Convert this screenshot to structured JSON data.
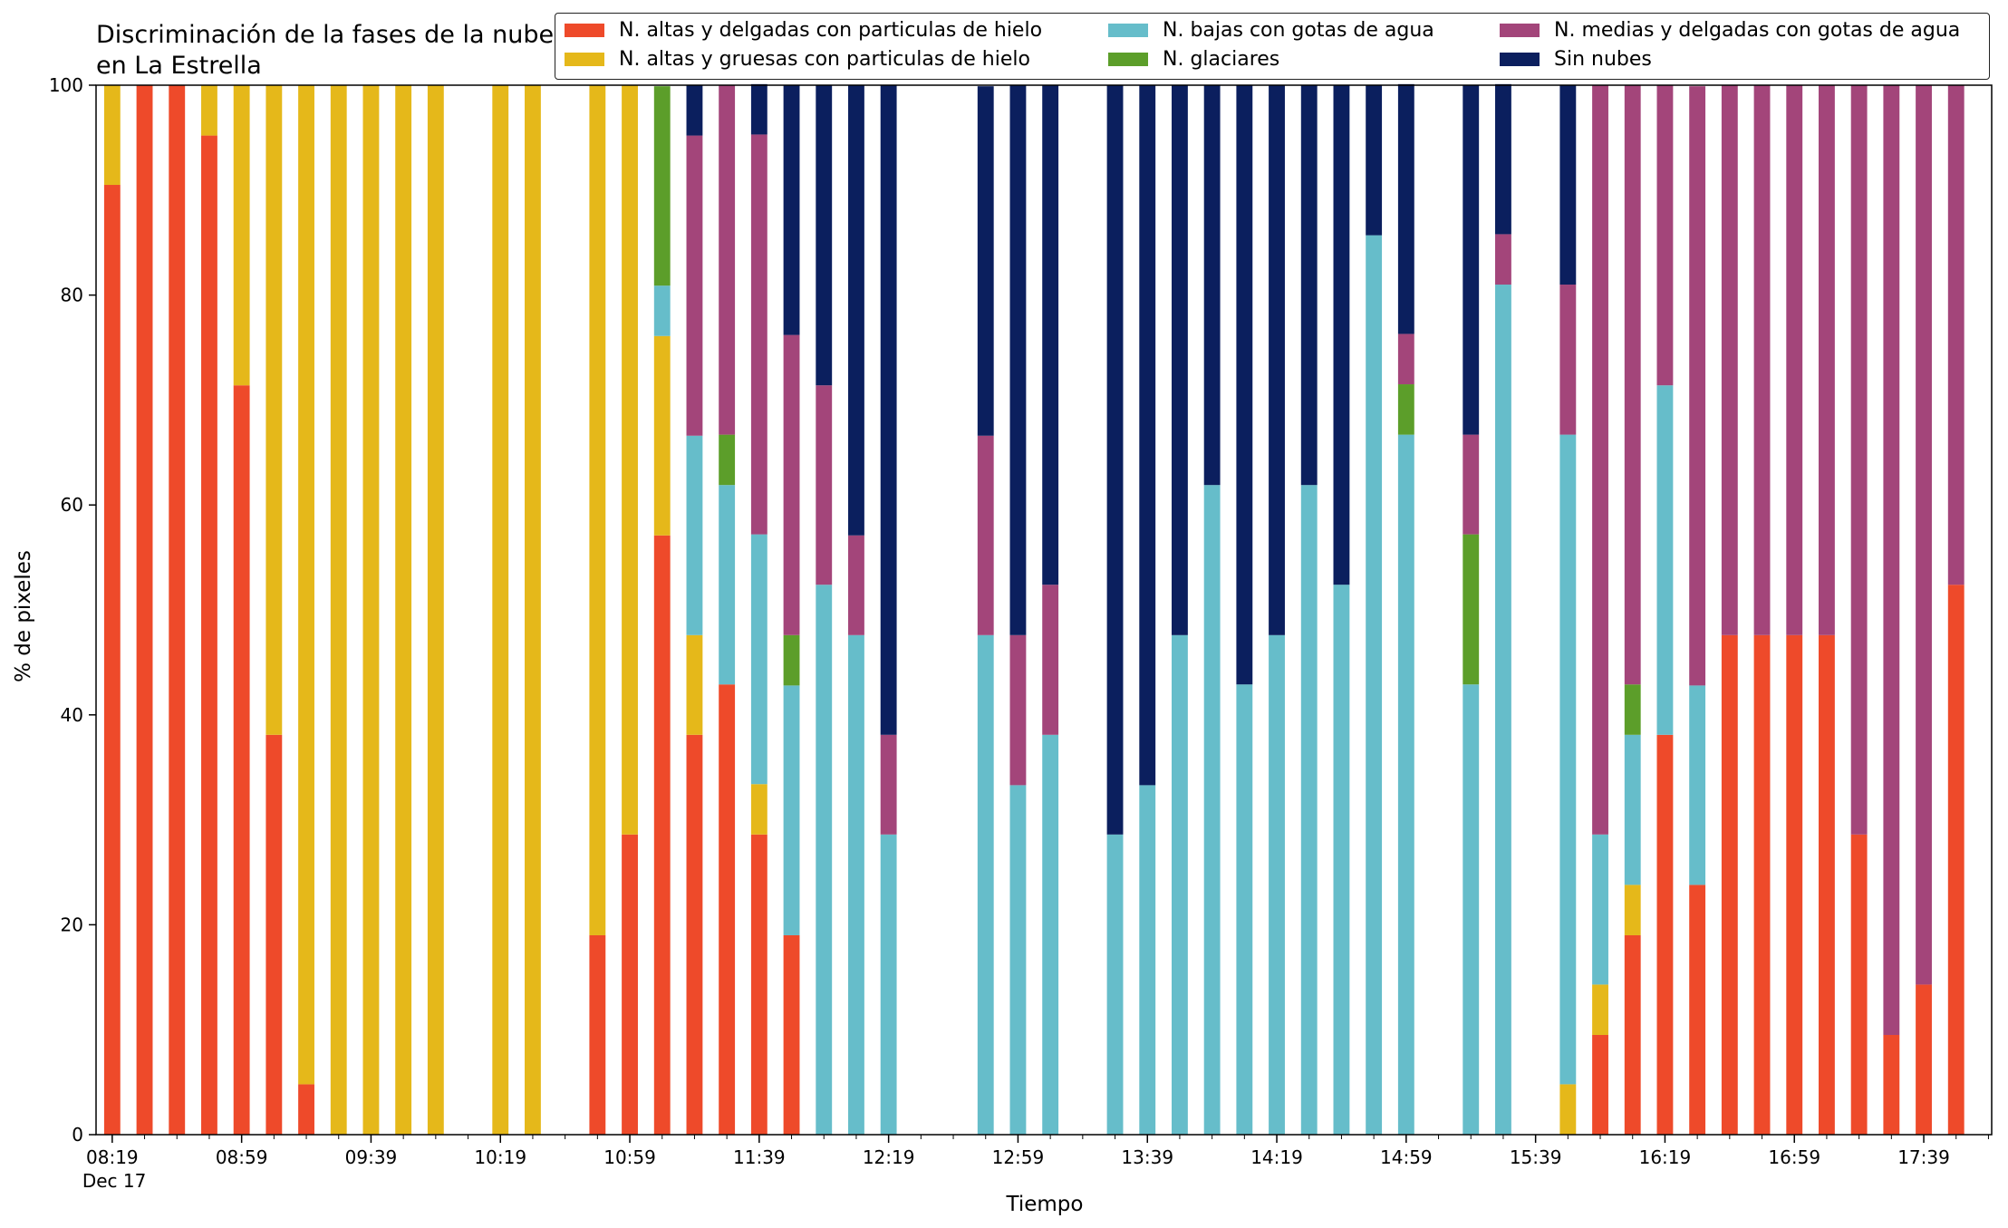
{
  "title": "Discriminación de la fases de la nube en La Estrella",
  "chart_data": {
    "type": "bar",
    "stacked": true,
    "title": "Discriminación de la fases de la nube en La Estrella",
    "xlabel": "Tiempo",
    "ylabel": "% de pixeles",
    "ylim": [
      0,
      100
    ],
    "yticks": [
      0,
      20,
      40,
      60,
      80,
      100
    ],
    "x_tick_labels": [
      "08:19",
      "08:59",
      "09:39",
      "10:19",
      "10:59",
      "11:39",
      "12:19",
      "12:59",
      "13:39",
      "14:19",
      "14:59",
      "15:39",
      "16:19",
      "16:59",
      "17:39"
    ],
    "x_date_label": "Dec 17",
    "x_start": "08:19",
    "x_end": "18:00",
    "x_interval_minutes": 10,
    "legend_position": "top",
    "legend": [
      {
        "key": "altas_delgadas",
        "label": "N. altas y delgadas con particulas de hielo",
        "color": "#ee4a2a"
      },
      {
        "key": "altas_gruesas",
        "label": "N. altas y gruesas con particulas de hielo",
        "color": "#e5b81a"
      },
      {
        "key": "bajas_agua",
        "label": "N. bajas con gotas de agua",
        "color": "#66bdca"
      },
      {
        "key": "glaciares",
        "label": "N. glaciares",
        "color": "#5c9e2a"
      },
      {
        "key": "medias_agua",
        "label": "N. medias y delgadas con gotas de agua",
        "color": "#a3457a"
      },
      {
        "key": "sin_nubes",
        "label": "Sin nubes",
        "color": "#0b1f5e"
      }
    ],
    "series_order": [
      "altas_delgadas",
      "altas_gruesas",
      "bajas_agua",
      "glaciares",
      "medias_agua",
      "sin_nubes"
    ],
    "bars": [
      {
        "time": "08:19",
        "altas_delgadas": 90.5,
        "altas_gruesas": 9.5,
        "bajas_agua": 0,
        "glaciares": 0,
        "medias_agua": 0,
        "sin_nubes": 0
      },
      {
        "time": "08:29",
        "altas_delgadas": 100,
        "altas_gruesas": 0,
        "bajas_agua": 0,
        "glaciares": 0,
        "medias_agua": 0,
        "sin_nubes": 0
      },
      {
        "time": "08:39",
        "altas_delgadas": 100,
        "altas_gruesas": 0,
        "bajas_agua": 0,
        "glaciares": 0,
        "medias_agua": 0,
        "sin_nubes": 0
      },
      {
        "time": "08:49",
        "altas_delgadas": 95.2,
        "altas_gruesas": 4.8,
        "bajas_agua": 0,
        "glaciares": 0,
        "medias_agua": 0,
        "sin_nubes": 0
      },
      {
        "time": "08:59",
        "altas_delgadas": 71.4,
        "altas_gruesas": 28.6,
        "bajas_agua": 0,
        "glaciares": 0,
        "medias_agua": 0,
        "sin_nubes": 0
      },
      {
        "time": "09:09",
        "altas_delgadas": 38.1,
        "altas_gruesas": 61.9,
        "bajas_agua": 0,
        "glaciares": 0,
        "medias_agua": 0,
        "sin_nubes": 0
      },
      {
        "time": "09:19",
        "altas_delgadas": 4.8,
        "altas_gruesas": 95.2,
        "bajas_agua": 0,
        "glaciares": 0,
        "medias_agua": 0,
        "sin_nubes": 0
      },
      {
        "time": "09:29",
        "altas_delgadas": 0,
        "altas_gruesas": 100,
        "bajas_agua": 0,
        "glaciares": 0,
        "medias_agua": 0,
        "sin_nubes": 0
      },
      {
        "time": "09:39",
        "altas_delgadas": 0,
        "altas_gruesas": 100,
        "bajas_agua": 0,
        "glaciares": 0,
        "medias_agua": 0,
        "sin_nubes": 0
      },
      {
        "time": "09:49",
        "altas_delgadas": 0,
        "altas_gruesas": 100,
        "bajas_agua": 0,
        "glaciares": 0,
        "medias_agua": 0,
        "sin_nubes": 0
      },
      {
        "time": "09:59",
        "altas_delgadas": 0,
        "altas_gruesas": 100,
        "bajas_agua": 0,
        "glaciares": 0,
        "medias_agua": 0,
        "sin_nubes": 0
      },
      {
        "time": "10:19",
        "altas_delgadas": 0,
        "altas_gruesas": 100,
        "bajas_agua": 0,
        "glaciares": 0,
        "medias_agua": 0,
        "sin_nubes": 0
      },
      {
        "time": "10:29",
        "altas_delgadas": 0,
        "altas_gruesas": 100,
        "bajas_agua": 0,
        "glaciares": 0,
        "medias_agua": 0,
        "sin_nubes": 0
      },
      {
        "time": "10:49",
        "altas_delgadas": 19.0,
        "altas_gruesas": 81.0,
        "bajas_agua": 0,
        "glaciares": 0,
        "medias_agua": 0,
        "sin_nubes": 0
      },
      {
        "time": "10:59",
        "altas_delgadas": 28.6,
        "altas_gruesas": 71.4,
        "bajas_agua": 0,
        "glaciares": 0,
        "medias_agua": 0,
        "sin_nubes": 0
      },
      {
        "time": "11:09",
        "altas_delgadas": 57.1,
        "altas_gruesas": 19.0,
        "bajas_agua": 4.8,
        "glaciares": 19.0,
        "medias_agua": 0,
        "sin_nubes": 0
      },
      {
        "time": "11:19",
        "altas_delgadas": 38.1,
        "altas_gruesas": 9.5,
        "bajas_agua": 19.0,
        "glaciares": 0,
        "medias_agua": 28.6,
        "sin_nubes": 4.8
      },
      {
        "time": "11:29",
        "altas_delgadas": 42.9,
        "altas_gruesas": 0,
        "bajas_agua": 19.0,
        "glaciares": 4.8,
        "medias_agua": 33.3,
        "sin_nubes": 0
      },
      {
        "time": "11:39",
        "altas_delgadas": 28.6,
        "altas_gruesas": 4.8,
        "bajas_agua": 23.8,
        "glaciares": 0,
        "medias_agua": 38.1,
        "sin_nubes": 4.8
      },
      {
        "time": "11:49",
        "altas_delgadas": 19.0,
        "altas_gruesas": 0,
        "bajas_agua": 23.8,
        "glaciares": 4.8,
        "medias_agua": 28.6,
        "sin_nubes": 23.8
      },
      {
        "time": "11:59",
        "altas_delgadas": 0,
        "altas_gruesas": 0,
        "bajas_agua": 52.4,
        "glaciares": 0,
        "medias_agua": 19.0,
        "sin_nubes": 28.6
      },
      {
        "time": "12:09",
        "altas_delgadas": 0,
        "altas_gruesas": 0,
        "bajas_agua": 47.6,
        "glaciares": 0,
        "medias_agua": 9.5,
        "sin_nubes": 42.9
      },
      {
        "time": "12:19",
        "altas_delgadas": 0,
        "altas_gruesas": 0,
        "bajas_agua": 28.6,
        "glaciares": 0,
        "medias_agua": 9.5,
        "sin_nubes": 61.9
      },
      {
        "time": "12:49",
        "altas_delgadas": 0,
        "altas_gruesas": 0,
        "bajas_agua": 47.6,
        "glaciares": 0,
        "medias_agua": 19.0,
        "sin_nubes": 33.3
      },
      {
        "time": "12:59",
        "altas_delgadas": 0,
        "altas_gruesas": 0,
        "bajas_agua": 33.3,
        "glaciares": 0,
        "medias_agua": 14.3,
        "sin_nubes": 52.4
      },
      {
        "time": "13:09",
        "altas_delgadas": 0,
        "altas_gruesas": 0,
        "bajas_agua": 38.1,
        "glaciares": 0,
        "medias_agua": 14.3,
        "sin_nubes": 47.6
      },
      {
        "time": "13:29",
        "altas_delgadas": 0,
        "altas_gruesas": 0,
        "bajas_agua": 28.6,
        "glaciares": 0,
        "medias_agua": 0,
        "sin_nubes": 71.4
      },
      {
        "time": "13:39",
        "altas_delgadas": 0,
        "altas_gruesas": 0,
        "bajas_agua": 33.3,
        "glaciares": 0,
        "medias_agua": 0,
        "sin_nubes": 66.7
      },
      {
        "time": "13:49",
        "altas_delgadas": 0,
        "altas_gruesas": 0,
        "bajas_agua": 47.6,
        "glaciares": 0,
        "medias_agua": 0,
        "sin_nubes": 52.4
      },
      {
        "time": "13:59",
        "altas_delgadas": 0,
        "altas_gruesas": 0,
        "bajas_agua": 61.9,
        "glaciares": 0,
        "medias_agua": 0,
        "sin_nubes": 38.1
      },
      {
        "time": "14:09",
        "altas_delgadas": 0,
        "altas_gruesas": 0,
        "bajas_agua": 42.9,
        "glaciares": 0,
        "medias_agua": 0,
        "sin_nubes": 57.1
      },
      {
        "time": "14:19",
        "altas_delgadas": 0,
        "altas_gruesas": 0,
        "bajas_agua": 47.6,
        "glaciares": 0,
        "medias_agua": 0,
        "sin_nubes": 52.4
      },
      {
        "time": "14:29",
        "altas_delgadas": 0,
        "altas_gruesas": 0,
        "bajas_agua": 61.9,
        "glaciares": 0,
        "medias_agua": 0,
        "sin_nubes": 38.1
      },
      {
        "time": "14:39",
        "altas_delgadas": 0,
        "altas_gruesas": 0,
        "bajas_agua": 52.4,
        "glaciares": 0,
        "medias_agua": 0,
        "sin_nubes": 47.6
      },
      {
        "time": "14:49",
        "altas_delgadas": 0,
        "altas_gruesas": 0,
        "bajas_agua": 85.7,
        "glaciares": 0,
        "medias_agua": 0,
        "sin_nubes": 14.3
      },
      {
        "time": "14:59",
        "altas_delgadas": 0,
        "altas_gruesas": 0,
        "bajas_agua": 66.7,
        "glaciares": 4.8,
        "medias_agua": 4.8,
        "sin_nubes": 23.8
      },
      {
        "time": "15:19",
        "altas_delgadas": 0,
        "altas_gruesas": 0,
        "bajas_agua": 42.9,
        "glaciares": 14.3,
        "medias_agua": 9.5,
        "sin_nubes": 33.3
      },
      {
        "time": "15:29",
        "altas_delgadas": 0,
        "altas_gruesas": 0,
        "bajas_agua": 81.0,
        "glaciares": 0,
        "medias_agua": 4.8,
        "sin_nubes": 14.3
      },
      {
        "time": "15:49",
        "altas_delgadas": 0,
        "altas_gruesas": 4.8,
        "bajas_agua": 61.9,
        "glaciares": 0,
        "medias_agua": 14.3,
        "sin_nubes": 19.0
      },
      {
        "time": "15:59",
        "altas_delgadas": 9.5,
        "altas_gruesas": 4.8,
        "bajas_agua": 14.3,
        "glaciares": 0,
        "medias_agua": 71.4,
        "sin_nubes": 0
      },
      {
        "time": "16:09",
        "altas_delgadas": 19.0,
        "altas_gruesas": 4.8,
        "bajas_agua": 14.3,
        "glaciares": 4.8,
        "medias_agua": 57.1,
        "sin_nubes": 0
      },
      {
        "time": "16:19",
        "altas_delgadas": 38.1,
        "altas_gruesas": 0,
        "bajas_agua": 33.3,
        "glaciares": 0,
        "medias_agua": 28.6,
        "sin_nubes": 0
      },
      {
        "time": "16:29",
        "altas_delgadas": 23.8,
        "altas_gruesas": 0,
        "bajas_agua": 19.0,
        "glaciares": 0,
        "medias_agua": 57.1,
        "sin_nubes": 0
      },
      {
        "time": "16:39",
        "altas_delgadas": 47.6,
        "altas_gruesas": 0,
        "bajas_agua": 0,
        "glaciares": 0,
        "medias_agua": 52.4,
        "sin_nubes": 0
      },
      {
        "time": "16:49",
        "altas_delgadas": 47.6,
        "altas_gruesas": 0,
        "bajas_agua": 0,
        "glaciares": 0,
        "medias_agua": 52.4,
        "sin_nubes": 0
      },
      {
        "time": "16:59",
        "altas_delgadas": 47.6,
        "altas_gruesas": 0,
        "bajas_agua": 0,
        "glaciares": 0,
        "medias_agua": 52.4,
        "sin_nubes": 0
      },
      {
        "time": "17:09",
        "altas_delgadas": 47.6,
        "altas_gruesas": 0,
        "bajas_agua": 0,
        "glaciares": 0,
        "medias_agua": 52.4,
        "sin_nubes": 0
      },
      {
        "time": "17:19",
        "altas_delgadas": 28.6,
        "altas_gruesas": 0,
        "bajas_agua": 0,
        "glaciares": 0,
        "medias_agua": 71.4,
        "sin_nubes": 0
      },
      {
        "time": "17:29",
        "altas_delgadas": 9.5,
        "altas_gruesas": 0,
        "bajas_agua": 0,
        "glaciares": 0,
        "medias_agua": 90.5,
        "sin_nubes": 0
      },
      {
        "time": "17:39",
        "altas_delgadas": 14.3,
        "altas_gruesas": 0,
        "bajas_agua": 0,
        "glaciares": 0,
        "medias_agua": 85.7,
        "sin_nubes": 0
      },
      {
        "time": "17:49",
        "altas_delgadas": 52.4,
        "altas_gruesas": 0,
        "bajas_agua": 0,
        "glaciares": 0,
        "medias_agua": 47.6,
        "sin_nubes": 0
      }
    ]
  }
}
